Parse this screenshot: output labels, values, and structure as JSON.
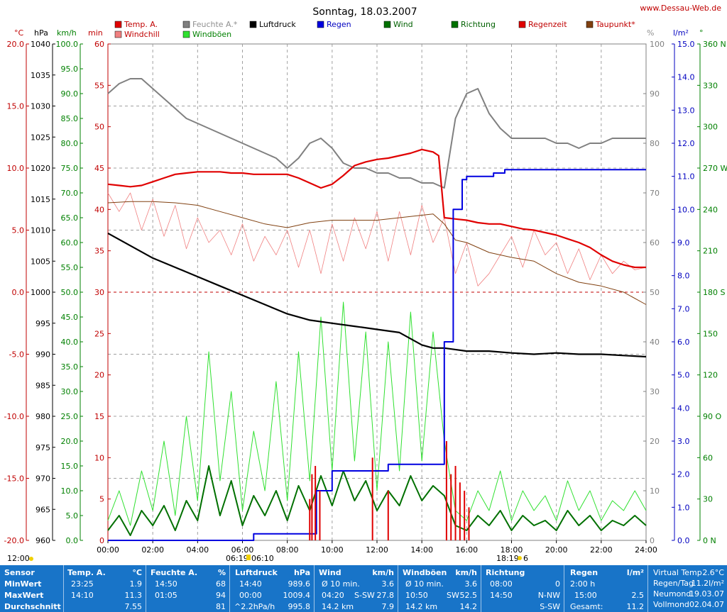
{
  "header": {
    "title": "Sonntag, 18.03.2007",
    "site": "www.Dessau-Web.de"
  },
  "colors": {
    "temp": "#e00000",
    "windchill": "#f08080",
    "humidity": "#808080",
    "pressure": "#000000",
    "rain": "#0000e0",
    "wind": "#007000",
    "gusts": "#30e030",
    "direction": "#007000",
    "rain_time": "#e00000",
    "dewpoint": "#804010"
  },
  "legend": [
    {
      "label": "Temp. A.",
      "color": "#e00000",
      "text_color": "#c00000"
    },
    {
      "label": "Windchill",
      "color": "#f08080",
      "text_color": "#c00000"
    },
    {
      "label": "Feuchte A.*",
      "color": "#808080",
      "text_color": "#909090"
    },
    {
      "label": "Windböen",
      "color": "#30e030",
      "text_color": "#008000"
    },
    {
      "label": "Luftdruck",
      "color": "#000000",
      "text_color": "#000000"
    },
    {
      "label": "Regen",
      "color": "#0000e0",
      "text_color": "#0000c0"
    },
    {
      "label": "Wind",
      "color": "#007000",
      "text_color": "#006000"
    },
    {
      "label": "Richtung",
      "color": "#007000",
      "text_color": "#006000"
    },
    {
      "label": "Regenzeit",
      "color": "#e00000",
      "text_color": "#c00000"
    },
    {
      "label": "Taupunkt*",
      "color": "#804010",
      "text_color": "#c00000"
    }
  ],
  "axes": {
    "units": {
      "temp": "°C",
      "pressure": "hPa",
      "wind": "km/h",
      "rain_min": "min",
      "humidity": "%",
      "rain": "l/m²",
      "direction": "°"
    },
    "temp_ticks": [
      "20.0",
      "15.0",
      "10.0",
      "5.0",
      "0.0",
      "-5.0",
      "-10.0",
      "-15.0",
      "-20.0"
    ],
    "pressure_ticks": [
      "1040",
      "1035",
      "1030",
      "1025",
      "1020",
      "1015",
      "1010",
      "1005",
      "1000",
      "995",
      "990",
      "985",
      "980",
      "975",
      "970",
      "965",
      "960"
    ],
    "wind_ticks": [
      "100.0",
      "95.0",
      "90.0",
      "85.0",
      "80.0",
      "75.0",
      "70.0",
      "65.0",
      "60.0",
      "55.0",
      "50.0",
      "45.0",
      "40.0",
      "35.0",
      "30.0",
      "25.0",
      "20.0",
      "15.0",
      "10.0",
      "5.0",
      "0.0"
    ],
    "min_ticks": [
      "60",
      "55",
      "50",
      "45",
      "40",
      "35",
      "30",
      "25",
      "20",
      "15",
      "10",
      "5",
      "0"
    ],
    "humidity_ticks": [
      "100",
      "90",
      "80",
      "70",
      "60",
      "50",
      "40",
      "30",
      "20",
      "10",
      "0"
    ],
    "rain_ticks": [
      "15.0",
      "14.0",
      "13.0",
      "12.0",
      "11.0",
      "10.0",
      "9.0",
      "8.0",
      "7.0",
      "6.0",
      "5.0",
      "4.0",
      "3.0",
      "2.0",
      "1.0",
      "0.0"
    ],
    "direction_ticks": [
      "360 N",
      "330",
      "300",
      "270 W",
      "240",
      "210",
      "180 S",
      "150",
      "120",
      "90 O",
      "60",
      "30",
      "0 N"
    ],
    "time_ticks": [
      "00:00",
      "02:00",
      "04:00",
      "06:00",
      "08:00",
      "10:00",
      "12:00",
      "14:00",
      "16:00",
      "18:00",
      "20:00",
      "22:00",
      "24:00"
    ],
    "sunrise": "06:19",
    "sunset": "18:19",
    "sun_marker_label": "12:00",
    "sunrise_extra": "06:10",
    "sunset_extra": "6"
  },
  "chart_data": {
    "type": "line",
    "title": "Sonntag, 18.03.2007",
    "x_unit": "hours",
    "xlim": [
      0,
      24
    ],
    "series": [
      {
        "name": "Temp. A.",
        "axis": "temp",
        "ylim": [
          -20,
          20
        ],
        "x": [
          0,
          0.5,
          1,
          1.5,
          2,
          2.5,
          3,
          3.5,
          4,
          4.5,
          5,
          5.5,
          6,
          6.5,
          7,
          7.5,
          8,
          8.5,
          9,
          9.5,
          10,
          10.5,
          11,
          11.5,
          12,
          12.5,
          13,
          13.5,
          14,
          14.5,
          14.75,
          15,
          15.5,
          16,
          16.5,
          17,
          17.5,
          18,
          18.5,
          19,
          19.5,
          20,
          20.5,
          21,
          21.5,
          22,
          22.5,
          23,
          23.5,
          24
        ],
        "y": [
          8.7,
          8.6,
          8.5,
          8.6,
          8.9,
          9.2,
          9.5,
          9.6,
          9.7,
          9.7,
          9.7,
          9.6,
          9.6,
          9.5,
          9.5,
          9.5,
          9.5,
          9.2,
          8.8,
          8.4,
          8.7,
          9.4,
          10.2,
          10.5,
          10.7,
          10.8,
          11.0,
          11.2,
          11.5,
          11.3,
          11.0,
          6.0,
          5.9,
          5.8,
          5.6,
          5.5,
          5.5,
          5.3,
          5.1,
          5.0,
          4.8,
          4.6,
          4.3,
          4.0,
          3.6,
          3.0,
          2.5,
          2.2,
          2.0,
          2.0
        ]
      },
      {
        "name": "Windchill",
        "axis": "temp",
        "ylim": [
          -20,
          20
        ],
        "style": "jagged",
        "x": [
          0,
          0.5,
          1,
          1.5,
          2,
          2.5,
          3,
          3.5,
          4,
          4.5,
          5,
          5.5,
          6,
          6.5,
          7,
          7.5,
          8,
          8.5,
          9,
          9.5,
          10,
          10.5,
          11,
          11.5,
          12,
          12.5,
          13,
          13.5,
          14,
          14.5,
          15,
          15.5,
          16,
          16.5,
          17,
          17.5,
          18,
          18.5,
          19,
          19.5,
          20,
          20.5,
          21,
          21.5,
          22,
          22.5,
          23,
          23.5,
          24
        ],
        "y": [
          8.0,
          6.5,
          8.0,
          5.0,
          7.5,
          4.5,
          7.0,
          3.5,
          6.0,
          4.0,
          5.0,
          3.0,
          5.5,
          2.5,
          4.5,
          3.0,
          5.0,
          2.0,
          5.0,
          1.5,
          5.5,
          2.5,
          6.0,
          3.5,
          6.5,
          2.5,
          6.5,
          3.0,
          7.0,
          4.0,
          6.0,
          1.5,
          4.0,
          0.5,
          1.5,
          3.0,
          4.5,
          2.0,
          5.0,
          3.0,
          4.0,
          1.5,
          3.5,
          1.0,
          3.0,
          1.5,
          2.5,
          1.8,
          2.0
        ]
      },
      {
        "name": "Feuchte A.*",
        "axis": "humidity",
        "ylim": [
          0,
          100
        ],
        "x": [
          0,
          0.5,
          1,
          1.5,
          2,
          2.5,
          3,
          3.5,
          4,
          4.5,
          5,
          5.5,
          6,
          6.5,
          7,
          7.5,
          8,
          8.5,
          9,
          9.5,
          10,
          10.5,
          11,
          11.5,
          12,
          12.5,
          13,
          13.5,
          14,
          14.5,
          15,
          15.5,
          16,
          16.5,
          17,
          17.5,
          18,
          18.5,
          19,
          19.5,
          20,
          20.5,
          21,
          21.5,
          22,
          22.5,
          23,
          23.5,
          24
        ],
        "y": [
          90,
          92,
          93,
          93,
          91,
          89,
          87,
          85,
          84,
          83,
          82,
          81,
          80,
          79,
          78,
          77,
          75,
          77,
          80,
          81,
          79,
          76,
          75,
          75,
          74,
          74,
          73,
          73,
          72,
          72,
          71,
          85,
          90,
          91,
          86,
          83,
          81,
          81,
          81,
          81,
          80,
          80,
          79,
          80,
          80,
          81,
          81,
          81,
          81
        ]
      },
      {
        "name": "Taupunkt*",
        "axis": "temp",
        "ylim": [
          -20,
          20
        ],
        "x": [
          0,
          1,
          2,
          3,
          4,
          5,
          6,
          7,
          8,
          9,
          10,
          11,
          12,
          13,
          14,
          14.5,
          15,
          15.5,
          16,
          16.5,
          17,
          18,
          19,
          20,
          21,
          22,
          23,
          24
        ],
        "y": [
          7.2,
          7.3,
          7.3,
          7.2,
          7.0,
          6.5,
          6.0,
          5.5,
          5.2,
          5.6,
          5.8,
          5.8,
          5.8,
          6.0,
          6.2,
          6.3,
          5.5,
          4.2,
          4.0,
          3.6,
          3.2,
          2.8,
          2.5,
          1.5,
          0.8,
          0.5,
          0,
          -1.0
        ]
      },
      {
        "name": "Luftdruck",
        "axis": "pressure",
        "ylim": [
          960,
          1040
        ],
        "x": [
          0,
          1,
          2,
          3,
          4,
          5,
          6,
          7,
          8,
          9,
          10,
          11,
          12,
          13,
          14,
          14.5,
          15,
          16,
          17,
          18,
          19,
          20,
          21,
          22,
          23,
          24
        ],
        "y": [
          1009.5,
          1007.5,
          1005.5,
          1004,
          1002.5,
          1001,
          999.5,
          998,
          996.5,
          995.5,
          995,
          994.5,
          994,
          993.5,
          991.5,
          991,
          991,
          990.5,
          990.5,
          990.2,
          990,
          990.2,
          990,
          990,
          989.8,
          989.6
        ]
      },
      {
        "name": "Regen",
        "axis": "rain",
        "ylim": [
          0,
          15
        ],
        "style": "step",
        "x": [
          0,
          6.5,
          9,
          9.3,
          10,
          12,
          12.5,
          13,
          14,
          14.8,
          15,
          15.4,
          15.8,
          16,
          17.2,
          17.7,
          24
        ],
        "y": [
          0,
          0.2,
          0.2,
          1.5,
          2.1,
          2.1,
          2.3,
          2.3,
          2.3,
          2.3,
          6,
          10,
          10.9,
          11,
          11.1,
          11.2,
          11.2
        ]
      },
      {
        "name": "Wind",
        "axis": "wind",
        "ylim": [
          0,
          100
        ],
        "style": "jagged",
        "x": [
          0,
          0.5,
          1,
          1.5,
          2,
          2.5,
          3,
          3.5,
          4,
          4.5,
          5,
          5.5,
          6,
          6.5,
          7,
          7.5,
          8,
          8.5,
          9,
          9.5,
          10,
          10.5,
          11,
          11.5,
          12,
          12.5,
          13,
          13.5,
          14,
          14.5,
          15,
          15.5,
          16,
          16.5,
          17,
          17.5,
          18,
          18.5,
          19,
          19.5,
          20,
          20.5,
          21,
          21.5,
          22,
          22.5,
          23,
          23.5,
          24
        ],
        "y": [
          2,
          5,
          1,
          6,
          3,
          7,
          2,
          8,
          4,
          15,
          5,
          12,
          3,
          9,
          5,
          10,
          4,
          11,
          6,
          13,
          7,
          14,
          8,
          12,
          6,
          10,
          7,
          13,
          8,
          11,
          9,
          3,
          2,
          5,
          3,
          6,
          2,
          5,
          3,
          4,
          2,
          6,
          3,
          5,
          2,
          4,
          3,
          5,
          3
        ]
      },
      {
        "name": "Windböen",
        "axis": "wind",
        "ylim": [
          0,
          100
        ],
        "style": "jagged",
        "x": [
          0,
          0.5,
          1,
          1.5,
          2,
          2.5,
          3,
          3.5,
          4,
          4.5,
          5,
          5.5,
          6,
          6.5,
          7,
          7.5,
          8,
          8.5,
          9,
          9.5,
          10,
          10.5,
          11,
          11.5,
          12,
          12.5,
          13,
          13.5,
          14,
          14.5,
          15,
          15.5,
          16,
          16.5,
          17,
          17.5,
          18,
          18.5,
          19,
          19.5,
          20,
          20.5,
          21,
          21.5,
          22,
          22.5,
          23,
          23.5,
          24
        ],
        "y": [
          4,
          10,
          3,
          14,
          6,
          20,
          5,
          25,
          8,
          38,
          12,
          30,
          6,
          22,
          10,
          32,
          8,
          38,
          12,
          45,
          14,
          48,
          16,
          42,
          10,
          40,
          14,
          46,
          16,
          42,
          20,
          6,
          4,
          10,
          6,
          14,
          4,
          10,
          6,
          9,
          4,
          12,
          6,
          10,
          4,
          8,
          6,
          10,
          6
        ]
      }
    ],
    "rain_time_bars": {
      "name": "Regenzeit",
      "x": [
        9.0,
        9.1,
        9.25,
        9.45,
        11.8,
        12.5,
        15.1,
        15.3,
        15.5,
        15.7,
        15.9,
        16.1
      ],
      "y": [
        5,
        8,
        9,
        6,
        10,
        6,
        12,
        8,
        9,
        7,
        6,
        4
      ]
    }
  },
  "stats": {
    "sensor": {
      "header": "Sensor",
      "rows": [
        "MinWert",
        "MaxWert",
        "Durchschnitt"
      ]
    },
    "temp": {
      "header": "Temp. A.",
      "unit": "°C",
      "rows": [
        [
          "23:25",
          "1.9"
        ],
        [
          "14:10",
          "11.3"
        ],
        [
          "",
          "7.55"
        ]
      ]
    },
    "humidity": {
      "header": "Feuchte A.",
      "unit": "%",
      "rows": [
        [
          "14:50",
          "68"
        ],
        [
          "01:05",
          "94"
        ],
        [
          "",
          "81"
        ]
      ]
    },
    "pressure": {
      "header": "Luftdruck",
      "unit": "hPa",
      "rows": [
        [
          "14:40",
          "989.6"
        ],
        [
          "00:00",
          "1009.4"
        ],
        [
          "^2.2hPa/h",
          "995.8"
        ]
      ]
    },
    "wind": {
      "header": "Wind",
      "unit": "km/h",
      "rows": [
        [
          "Ø 10 min.",
          "",
          "3.6"
        ],
        [
          "04:20",
          "S-SW",
          "27.8"
        ],
        [
          "14.2 km",
          "",
          "7.9"
        ]
      ]
    },
    "gusts": {
      "header": "Windböen",
      "unit": "km/h",
      "rows": [
        [
          "Ø 10 min.",
          "",
          "3.6"
        ],
        [
          "10:50",
          "SW",
          "52.5"
        ],
        [
          "14.2 km",
          "",
          "14.2"
        ]
      ]
    },
    "direction": {
      "header": "Richtung",
      "unit": "",
      "rows": [
        [
          "08:00",
          "0"
        ],
        [
          "14:50",
          "N-NW"
        ],
        [
          "",
          "S-SW"
        ]
      ]
    },
    "rain": {
      "header": "Regen",
      "unit": "l/m²",
      "rows": [
        [
          "2:00 h",
          ""
        ],
        [
          "15:00",
          "2.5"
        ],
        [
          "Gesamt:",
          "11.2"
        ]
      ]
    },
    "extra": {
      "rows": [
        [
          "Virtual Temp",
          "2.6°C"
        ],
        [
          "Regen/Tag",
          "11.2l/m²"
        ],
        [
          "Neumond",
          "19.03.07"
        ],
        [
          "Vollmond",
          "02.04.07"
        ]
      ]
    }
  }
}
